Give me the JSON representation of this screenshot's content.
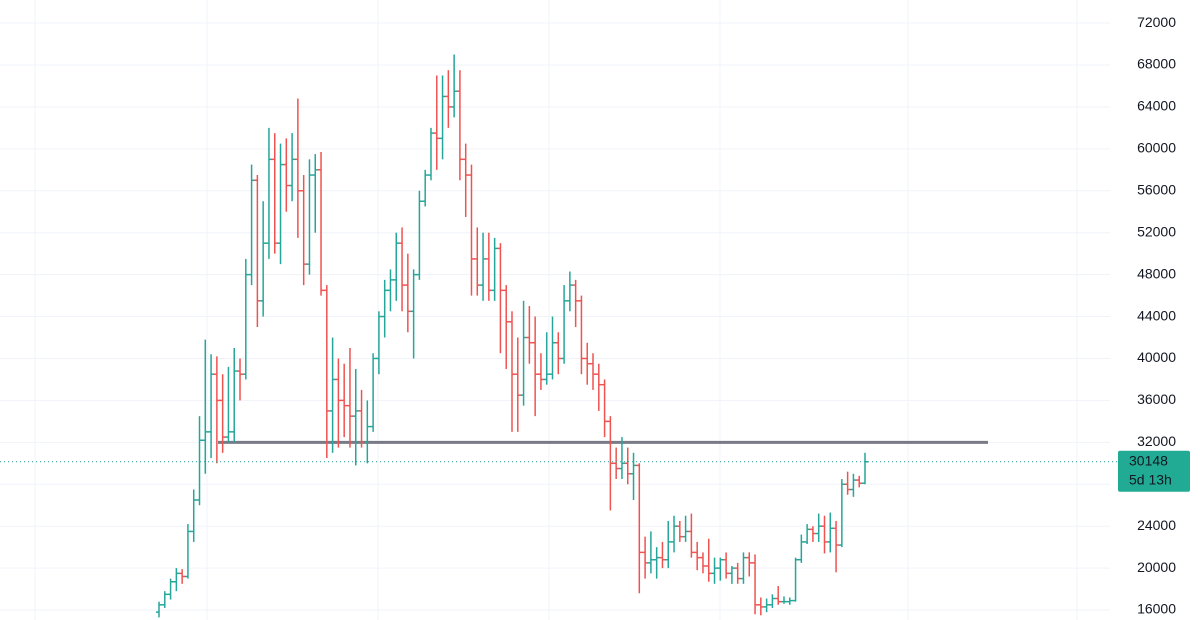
{
  "chart_data": {
    "type": "ohlc",
    "ylim": [
      15050,
      74200
    ],
    "yticks": [
      16000,
      20000,
      24000,
      28000,
      32000,
      36000,
      40000,
      44000,
      48000,
      52000,
      56000,
      60000,
      64000,
      68000,
      72000
    ],
    "grid": true,
    "up_color": "#26a69a",
    "down_color": "#ef5350",
    "level": {
      "value": 32000,
      "color": "#787b86"
    },
    "countdown": "5d 13h",
    "ohlc": [
      [
        15800,
        16800,
        15300,
        16500
      ],
      [
        16500,
        17800,
        16200,
        17500
      ],
      [
        17500,
        19000,
        17000,
        18700
      ],
      [
        18700,
        20000,
        17800,
        19500
      ],
      [
        19500,
        19900,
        18500,
        19200
      ],
      [
        19200,
        24200,
        19000,
        23500
      ],
      [
        23500,
        27500,
        22500,
        26500
      ],
      [
        26500,
        34500,
        26000,
        32200
      ],
      [
        32200,
        41800,
        29000,
        33000
      ],
      [
        33000,
        40400,
        30500,
        38500
      ],
      [
        38500,
        40200,
        30000,
        36000
      ],
      [
        36000,
        38500,
        31000,
        32500
      ],
      [
        32500,
        39200,
        32000,
        33000
      ],
      [
        33000,
        41000,
        32000,
        38800
      ],
      [
        38800,
        40000,
        36000,
        38500
      ],
      [
        38500,
        49500,
        38000,
        48000
      ],
      [
        48000,
        58500,
        47000,
        57000
      ],
      [
        57000,
        57500,
        43000,
        45500
      ],
      [
        45500,
        55000,
        44000,
        51000
      ],
      [
        51000,
        62000,
        49500,
        59000
      ],
      [
        59000,
        61500,
        50000,
        51000
      ],
      [
        51000,
        60500,
        49000,
        58500
      ],
      [
        58500,
        61000,
        54000,
        56500
      ],
      [
        56500,
        61500,
        55000,
        59000
      ],
      [
        59000,
        64800,
        51500,
        56000
      ],
      [
        56000,
        57500,
        47000,
        49000
      ],
      [
        49000,
        59000,
        48000,
        57500
      ],
      [
        57500,
        59500,
        52000,
        58000
      ],
      [
        58000,
        59700,
        46000,
        46500
      ],
      [
        46500,
        47000,
        30500,
        35000
      ],
      [
        35000,
        42000,
        31000,
        38000
      ],
      [
        38000,
        40000,
        31500,
        36000
      ],
      [
        36000,
        39500,
        32500,
        35500
      ],
      [
        35500,
        41000,
        31500,
        34500
      ],
      [
        34500,
        39000,
        29800,
        35000
      ],
      [
        35000,
        37000,
        31500,
        32000
      ],
      [
        32000,
        36000,
        30000,
        33500
      ],
      [
        33500,
        40500,
        33000,
        40000
      ],
      [
        40000,
        44500,
        38500,
        44000
      ],
      [
        44000,
        47500,
        42000,
        46500
      ],
      [
        46500,
        48500,
        44500,
        47500
      ],
      [
        47500,
        52000,
        45500,
        51000
      ],
      [
        51000,
        52500,
        44500,
        47000
      ],
      [
        47000,
        50000,
        42500,
        44500
      ],
      [
        44500,
        48500,
        40000,
        48000
      ],
      [
        48000,
        56000,
        47500,
        55000
      ],
      [
        55000,
        58000,
        54500,
        57500
      ],
      [
        57500,
        62000,
        57000,
        61500
      ],
      [
        61500,
        67000,
        58000,
        61000
      ],
      [
        61000,
        67000,
        59000,
        65000
      ],
      [
        65000,
        67500,
        62000,
        64000
      ],
      [
        64000,
        69000,
        63000,
        65500
      ],
      [
        65500,
        67500,
        57000,
        59000
      ],
      [
        59000,
        60500,
        53500,
        57500
      ],
      [
        57500,
        58500,
        46000,
        49500
      ],
      [
        49500,
        52500,
        46000,
        47000
      ],
      [
        47000,
        52000,
        45500,
        49500
      ],
      [
        49500,
        52000,
        45500,
        46500
      ],
      [
        46500,
        51500,
        45500,
        50500
      ],
      [
        50500,
        51000,
        40500,
        46500
      ],
      [
        46500,
        47000,
        39000,
        43500
      ],
      [
        43500,
        44500,
        33000,
        38500
      ],
      [
        38500,
        42000,
        33000,
        36500
      ],
      [
        36500,
        45500,
        35500,
        42000
      ],
      [
        42000,
        45000,
        39500,
        41500
      ],
      [
        41500,
        44000,
        34500,
        38500
      ],
      [
        38500,
        40500,
        37000,
        38000
      ],
      [
        38000,
        42500,
        37500,
        38500
      ],
      [
        38500,
        44000,
        38000,
        41500
      ],
      [
        41500,
        42500,
        38500,
        40000
      ],
      [
        40000,
        47000,
        39500,
        45500
      ],
      [
        45500,
        48300,
        44500,
        47000
      ],
      [
        47000,
        47500,
        43000,
        45500
      ],
      [
        45500,
        46000,
        38500,
        40000
      ],
      [
        40000,
        41500,
        37500,
        39500
      ],
      [
        39500,
        40500,
        37000,
        38500
      ],
      [
        38500,
        39500,
        35000,
        37500
      ],
      [
        37500,
        38000,
        32500,
        34000
      ],
      [
        34000,
        34500,
        25500,
        30000
      ],
      [
        30000,
        31500,
        28500,
        29500
      ],
      [
        29500,
        32500,
        28500,
        30000
      ],
      [
        30000,
        31500,
        28000,
        29000
      ],
      [
        29000,
        31000,
        26500,
        29800
      ],
      [
        29800,
        30000,
        17600,
        21500
      ],
      [
        21500,
        23000,
        19000,
        20500
      ],
      [
        20500,
        23500,
        19500,
        20800
      ],
      [
        20800,
        22000,
        19000,
        21000
      ],
      [
        21000,
        22500,
        20000,
        20800
      ],
      [
        20800,
        24500,
        20000,
        22500
      ],
      [
        22500,
        25000,
        21500,
        24000
      ],
      [
        24000,
        24500,
        22500,
        23000
      ],
      [
        23000,
        25000,
        22500,
        23500
      ],
      [
        23500,
        25200,
        21000,
        21500
      ],
      [
        21500,
        22500,
        19800,
        21000
      ],
      [
        21000,
        21500,
        19500,
        20200
      ],
      [
        20200,
        22800,
        18700,
        19500
      ],
      [
        19500,
        21000,
        18500,
        20000
      ],
      [
        20000,
        21000,
        18800,
        20800
      ],
      [
        20800,
        21500,
        19000,
        19500
      ],
      [
        19500,
        20200,
        18500,
        20000
      ],
      [
        20000,
        20500,
        18500,
        19000
      ],
      [
        19000,
        21500,
        18500,
        21000
      ],
      [
        21000,
        21500,
        19200,
        20500
      ],
      [
        20500,
        21300,
        15600,
        16500
      ],
      [
        16500,
        17200,
        15500,
        16300
      ],
      [
        16300,
        17100,
        15800,
        16500
      ],
      [
        16500,
        17500,
        16200,
        17100
      ],
      [
        17100,
        18300,
        16500,
        16800
      ],
      [
        16800,
        17300,
        16600,
        16800
      ],
      [
        16800,
        17200,
        16500,
        16900
      ],
      [
        16900,
        21000,
        16800,
        20800
      ],
      [
        20800,
        23200,
        20500,
        22500
      ],
      [
        22500,
        24200,
        22300,
        23700
      ],
      [
        23700,
        24000,
        22500,
        23300
      ],
      [
        23300,
        25200,
        22500,
        24000
      ],
      [
        24000,
        25000,
        21400,
        22500
      ],
      [
        22500,
        25300,
        21500,
        23800
      ],
      [
        23800,
        24500,
        19600,
        22200
      ],
      [
        22200,
        28500,
        22000,
        28000
      ],
      [
        28000,
        29200,
        27000,
        27500
      ],
      [
        27500,
        29000,
        26800,
        28400
      ],
      [
        28400,
        28800,
        27700,
        28100
      ],
      [
        28100,
        31000,
        28000,
        30148
      ]
    ]
  }
}
